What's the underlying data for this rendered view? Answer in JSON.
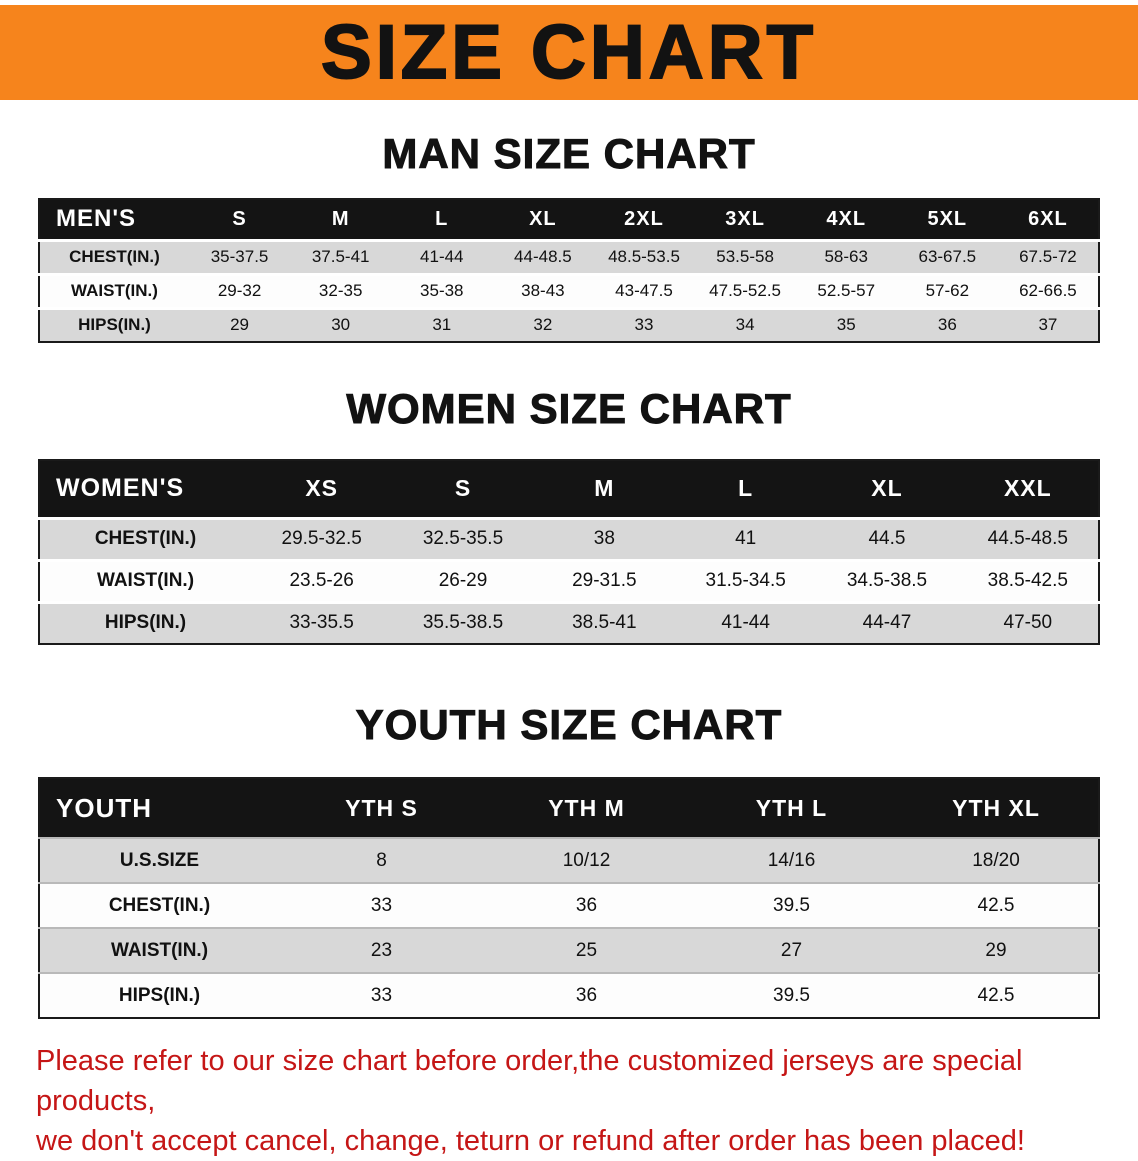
{
  "banner": {
    "title": "SIZE CHART"
  },
  "sections": [
    {
      "heading": "MAN SIZE CHART",
      "table": {
        "header": [
          "MEN'S",
          "S",
          "M",
          "L",
          "XL",
          "2XL",
          "3XL",
          "4XL",
          "5XL",
          "6XL"
        ],
        "rows": [
          {
            "label": "CHEST(IN.)",
            "values": [
              "35-37.5",
              "37.5-41",
              "41-44",
              "44-48.5",
              "48.5-53.5",
              "53.5-58",
              "58-63",
              "63-67.5",
              "67.5-72"
            ]
          },
          {
            "label": "WAIST(IN.)",
            "values": [
              "29-32",
              "32-35",
              "35-38",
              "38-43",
              "43-47.5",
              "47.5-52.5",
              "52.5-57",
              "57-62",
              "62-66.5"
            ]
          },
          {
            "label": "HIPS(IN.)",
            "values": [
              "29",
              "30",
              "31",
              "32",
              "33",
              "34",
              "35",
              "36",
              "37"
            ]
          }
        ]
      }
    },
    {
      "heading": "WOMEN SIZE CHART",
      "table": {
        "header": [
          "WOMEN'S",
          "XS",
          "S",
          "M",
          "L",
          "XL",
          "XXL"
        ],
        "rows": [
          {
            "label": "CHEST(IN.)",
            "values": [
              "29.5-32.5",
              "32.5-35.5",
              "38",
              "41",
              "44.5",
              "44.5-48.5"
            ]
          },
          {
            "label": "WAIST(IN.)",
            "values": [
              "23.5-26",
              "26-29",
              "29-31.5",
              "31.5-34.5",
              "34.5-38.5",
              "38.5-42.5"
            ]
          },
          {
            "label": "HIPS(IN.)",
            "values": [
              "33-35.5",
              "35.5-38.5",
              "38.5-41",
              "41-44",
              "44-47",
              "47-50"
            ]
          }
        ]
      }
    },
    {
      "heading": "YOUTH SIZE CHART",
      "table": {
        "header": [
          "YOUTH",
          "YTH S",
          "YTH M",
          "YTH L",
          "YTH XL"
        ],
        "rows": [
          {
            "label": "U.S.SIZE",
            "values": [
              "8",
              "10/12",
              "14/16",
              "18/20"
            ]
          },
          {
            "label": "CHEST(IN.)",
            "values": [
              "33",
              "36",
              "39.5",
              "42.5"
            ]
          },
          {
            "label": "WAIST(IN.)",
            "values": [
              "23",
              "25",
              "27",
              "29"
            ]
          },
          {
            "label": "HIPS(IN.)",
            "values": [
              "33",
              "36",
              "39.5",
              "42.5"
            ]
          }
        ]
      }
    }
  ],
  "disclaimer": {
    "line1": "Please refer to our size chart before order,the customized jerseys are special products,",
    "line2": "we don't accept cancel, change, teturn or refund after order has been placed!"
  },
  "colors": {
    "banner_bg": "#f6841c",
    "table_header_bg": "#141414",
    "table_header_text": "#ffffff",
    "row_alt_bg": "#d8d8d8",
    "disclaimer_text": "#c51616"
  }
}
